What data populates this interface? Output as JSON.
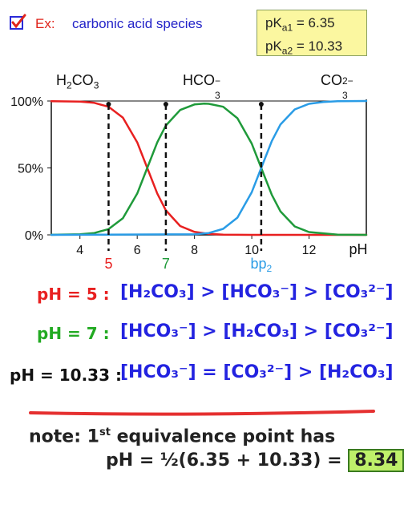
{
  "header": {
    "ex_label": "Ex:",
    "title": "carbonic acid species"
  },
  "pka_box": {
    "pka1_label": "pK",
    "pka1_sub": "a1",
    "pka1_value": "=   6.35",
    "pka2_label": "pK",
    "pka2_sub": "a2",
    "pka2_value": "= 10.33"
  },
  "species": [
    {
      "base": "H",
      "sub": "2",
      "rest": "CO",
      "sub2": "3",
      "sup": ""
    },
    {
      "base": "HCO",
      "sub": "3",
      "rest": "",
      "sub2": "",
      "sup": "−"
    },
    {
      "base": "CO",
      "sub": "3",
      "rest": "",
      "sub2": "",
      "sup": "2−"
    }
  ],
  "chart_data": {
    "type": "line",
    "xlabel": "pH",
    "xlim": [
      3,
      14
    ],
    "ylim": [
      0,
      100
    ],
    "x_ticks": [
      4,
      6,
      8,
      10,
      12
    ],
    "y_ticks": [
      {
        "value": 100,
        "label": "100%"
      },
      {
        "value": 50,
        "label": "50%"
      },
      {
        "value": 0,
        "label": "0%"
      }
    ],
    "pka1": 6.35,
    "pka2": 10.33,
    "series": [
      {
        "species": "H2CO3",
        "color": "#e82020",
        "x": [
          3,
          4,
          4.5,
          5,
          5.5,
          6,
          6.35,
          6.7,
          7,
          7.5,
          8,
          8.5,
          9,
          10,
          11,
          12,
          13,
          14
        ],
        "y": [
          99.9,
          99.5,
          98.6,
          95.7,
          87.6,
          69.1,
          50,
          30.9,
          18.3,
          6.6,
          2.2,
          0.7,
          0.2,
          0.01,
          0,
          0,
          0,
          0
        ]
      },
      {
        "species": "HCO3-",
        "color": "#1f9a3a",
        "x": [
          3,
          4,
          4.5,
          5,
          5.5,
          6,
          6.35,
          6.7,
          7,
          7.5,
          8,
          8.34,
          8.5,
          9,
          9.5,
          10,
          10.33,
          10.7,
          11,
          11.5,
          12,
          13,
          14
        ],
        "y": [
          0.05,
          0.45,
          1.4,
          4.3,
          12.4,
          30.9,
          50,
          69.1,
          81.7,
          93.3,
          97.4,
          98,
          97.9,
          95.7,
          87.1,
          68.1,
          50,
          29.9,
          17.6,
          6.3,
          2.1,
          0.2,
          0.02
        ]
      },
      {
        "species": "CO3 2-",
        "color": "#2a9ce6",
        "x": [
          3,
          8,
          8.5,
          9,
          9.5,
          10,
          10.33,
          10.7,
          11,
          11.5,
          12,
          12.5,
          13,
          14
        ],
        "y": [
          0,
          0.4,
          1.4,
          4.5,
          12.9,
          31.9,
          50,
          70.1,
          82.4,
          93.7,
          97.9,
          99.3,
          99.8,
          100
        ]
      }
    ],
    "vlines": [
      {
        "x": 5,
        "label": "5",
        "color": "#e82020"
      },
      {
        "x": 7,
        "label": "7",
        "color": "#1f9a3a"
      },
      {
        "x": 10.33,
        "label": "bp",
        "label_sub": "2",
        "color": "#2a9ce6"
      }
    ]
  },
  "inequalities": [
    {
      "ph_label": "pH = 5 :",
      "ph_color": "#e82020",
      "expr": "[H₂CO₃] > [HCO₃⁻] > [CO₃²⁻]"
    },
    {
      "ph_label": "pH = 7 :",
      "ph_color": "#22aa22",
      "expr": "[HCO₃⁻] > [H₂CO₃] > [CO₃²⁻]"
    },
    {
      "ph_label": "pH = 10.33 :",
      "ph_color": "#111111",
      "expr": "[HCO₃⁻] = [CO₃²⁻] > [H₂CO₃]"
    }
  ],
  "note": {
    "line1_a": "note:  1",
    "line1_sup": "st",
    "line1_b": " equivalence point has",
    "line2_a": "pH = ½(6.35 + 10.33) =",
    "answer": "8.34"
  },
  "colors": {
    "expr_blue": "#2323e0",
    "divider_red": "#e53030"
  }
}
